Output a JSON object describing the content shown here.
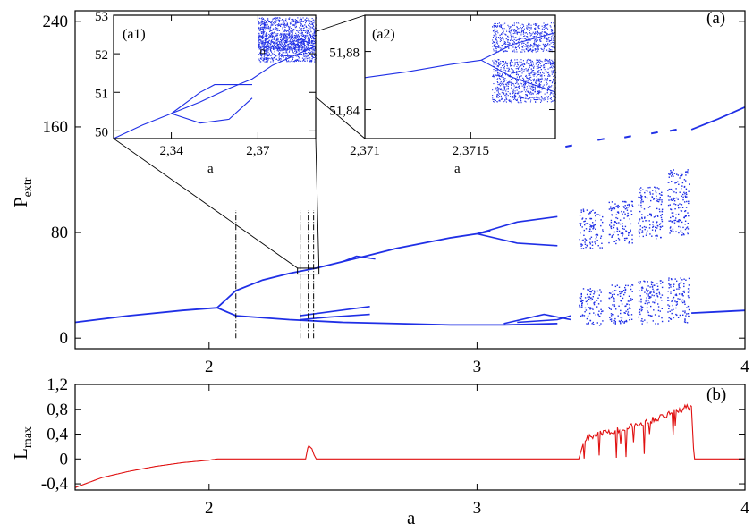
{
  "colors": {
    "bifurcation": "#1f2fe6",
    "lyapunov": "#e01010",
    "frame": "#000000"
  },
  "chart_data": [
    {
      "id": "a",
      "type": "scatter",
      "panel_label": "(a)",
      "xlabel": "a",
      "ylabel_main": "P",
      "ylabel_sub": "extr",
      "xlim": [
        1.5,
        4.0
      ],
      "ylim": [
        -8,
        248
      ],
      "xticks": [
        {
          "v": 2,
          "label": "2"
        },
        {
          "v": 3,
          "label": "3"
        },
        {
          "v": 4,
          "label": "4"
        }
      ],
      "yticks": [
        {
          "v": 0,
          "label": "0"
        },
        {
          "v": 80,
          "label": "80"
        },
        {
          "v": 160,
          "label": "160"
        },
        {
          "v": 240,
          "label": "240"
        }
      ],
      "marker_lines_a": [
        2.1,
        2.34,
        2.37,
        2.39
      ],
      "zoom_box": {
        "a": [
          2.33,
          2.41
        ],
        "p": [
          48.5,
          53.0
        ]
      },
      "branches": [
        {
          "name": "upper-fixed",
          "x": [
            1.5,
            1.7,
            1.9,
            2.03
          ],
          "y": [
            12,
            17,
            21,
            23
          ]
        },
        {
          "name": "upper-branch",
          "x": [
            2.03,
            2.1,
            2.2,
            2.3,
            2.4,
            2.5,
            2.6,
            2.7,
            2.8,
            2.9,
            3.0,
            3.05
          ],
          "y": [
            23,
            36,
            44,
            49,
            53,
            58,
            63,
            68,
            72,
            76,
            79,
            81
          ]
        },
        {
          "name": "lower-branch",
          "x": [
            2.03,
            2.1,
            2.3,
            2.5,
            2.7,
            2.9,
            3.1,
            3.3
          ],
          "y": [
            23,
            17,
            14,
            12,
            11,
            10,
            10,
            11
          ]
        },
        {
          "name": "far-right-upper",
          "x": [
            3.8,
            3.9,
            4.0
          ],
          "y": [
            158,
            166,
            175
          ]
        },
        {
          "name": "far-right-lower",
          "x": [
            3.8,
            3.9,
            4.0
          ],
          "y": [
            19,
            20,
            21
          ]
        }
      ],
      "chaotic_bands": [
        {
          "a": [
            3.38,
            3.47
          ],
          "upper": [
            68,
            98
          ],
          "lower": [
            10,
            38
          ]
        },
        {
          "a": [
            3.49,
            3.58
          ],
          "upper": [
            72,
            104
          ],
          "lower": [
            11,
            41
          ]
        },
        {
          "a": [
            3.6,
            3.69
          ],
          "upper": [
            75,
            115
          ],
          "lower": [
            11,
            44
          ]
        },
        {
          "a": [
            3.71,
            3.79
          ],
          "upper": [
            78,
            128
          ],
          "lower": [
            12,
            46
          ]
        }
      ]
    },
    {
      "id": "b",
      "type": "line",
      "panel_label": "(b)",
      "xlabel": "a",
      "ylabel_main": "L",
      "ylabel_sub": "max",
      "xlim": [
        1.5,
        4.0
      ],
      "ylim": [
        -0.5,
        1.2
      ],
      "xticks": [
        {
          "v": 2,
          "label": "2"
        },
        {
          "v": 3,
          "label": "3"
        },
        {
          "v": 4,
          "label": "4"
        }
      ],
      "yticks": [
        {
          "v": -0.4,
          "label": "-0,4"
        },
        {
          "v": 0,
          "label": "0"
        },
        {
          "v": 0.4,
          "label": "0,4"
        },
        {
          "v": 0.8,
          "label": "0,8"
        },
        {
          "v": 1.2,
          "label": "1,2"
        }
      ],
      "series": [
        {
          "x": [
            1.5,
            1.6,
            1.7,
            1.8,
            1.9,
            2.0,
            2.03,
            2.36,
            2.37,
            2.375,
            2.38,
            2.385,
            2.39,
            2.4,
            3.38,
            3.4,
            3.45,
            3.5,
            3.55,
            3.6,
            3.65,
            3.7,
            3.75,
            3.8,
            3.81,
            4.0
          ],
          "y": [
            -0.46,
            -0.3,
            -0.2,
            -0.12,
            -0.06,
            -0.02,
            0.0,
            0.0,
            0.22,
            0.2,
            0.18,
            0.16,
            0.08,
            0.0,
            0.0,
            0.3,
            0.4,
            0.44,
            0.5,
            0.55,
            0.62,
            0.7,
            0.78,
            0.85,
            0.0,
            0.0
          ]
        }
      ]
    },
    {
      "id": "a1",
      "type": "scatter",
      "panel_label": "(a1)",
      "xlabel": "a",
      "xlim": [
        2.32,
        2.39
      ],
      "ylim": [
        49.8,
        53.0
      ],
      "xticks": [
        {
          "v": 2.34,
          "label": "2,34"
        },
        {
          "v": 2.37,
          "label": "2,37"
        }
      ],
      "yticks": [
        {
          "v": 50,
          "label": "50"
        },
        {
          "v": 51,
          "label": "51"
        },
        {
          "v": 52,
          "label": "52"
        },
        {
          "v": 53,
          "label": "53"
        }
      ],
      "zoom_box": {
        "a": [
          2.371,
          2.372
        ],
        "p": [
          51.82,
          51.9
        ]
      },
      "branches": [
        {
          "name": "lower",
          "x": [
            2.32,
            2.33,
            2.34,
            2.35,
            2.36,
            2.368,
            2.375,
            2.39
          ],
          "y": [
            49.8,
            50.15,
            50.45,
            50.75,
            51.1,
            51.35,
            51.7,
            52.2
          ]
        },
        {
          "name": "loop-top",
          "x": [
            2.34,
            2.35,
            2.355,
            2.36,
            2.368
          ],
          "y": [
            50.45,
            51.0,
            51.2,
            51.2,
            51.2
          ]
        },
        {
          "name": "loop-bottom",
          "x": [
            2.34,
            2.35,
            2.36,
            2.368
          ],
          "y": [
            50.45,
            50.2,
            50.3,
            50.85
          ]
        }
      ],
      "chaotic_bands": [
        {
          "a": [
            2.37,
            2.39
          ],
          "upper": [
            52.1,
            52.95
          ],
          "lower": [
            51.8,
            52.5
          ]
        }
      ]
    },
    {
      "id": "a2",
      "type": "scatter",
      "panel_label": "(a2)",
      "xlabel": "a",
      "xlim": [
        2.371,
        2.3719
      ],
      "ylim": [
        51.82,
        51.905
      ],
      "xticks": [
        {
          "v": 2.371,
          "label": "2,371"
        },
        {
          "v": 2.3715,
          "label": "2,3715"
        }
      ],
      "yticks": [
        {
          "v": 51.84,
          "label": "51,84"
        },
        {
          "v": 51.88,
          "label": "51,88"
        }
      ],
      "branches": [
        {
          "name": "main",
          "x": [
            2.371,
            2.3712,
            2.3714,
            2.37155
          ],
          "y": [
            51.862,
            51.866,
            51.871,
            51.874
          ]
        },
        {
          "name": "upper",
          "x": [
            2.37155,
            2.3717,
            2.3719
          ],
          "y": [
            51.874,
            51.885,
            51.893
          ]
        },
        {
          "name": "lower",
          "x": [
            2.37155,
            2.3717,
            2.3719
          ],
          "y": [
            51.874,
            51.862,
            51.852
          ]
        }
      ],
      "chaotic_bands": [
        {
          "a": [
            2.3716,
            2.3719
          ],
          "upper": [
            51.88,
            51.9
          ],
          "lower": [
            51.845,
            51.875
          ]
        }
      ]
    }
  ]
}
